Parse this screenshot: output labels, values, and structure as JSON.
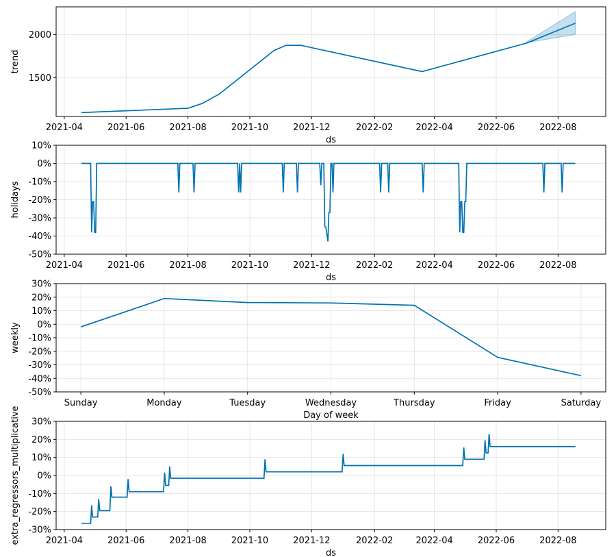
{
  "chart_data": [
    {
      "type": "line",
      "ylabel": "trend",
      "xlabel": "ds",
      "x_axis": "date",
      "xlim": [
        "2021-03-24",
        "2022-09-17"
      ],
      "xticks": [
        "2021-04",
        "2021-06",
        "2021-08",
        "2021-10",
        "2021-12",
        "2022-02",
        "2022-04",
        "2022-06",
        "2022-08"
      ],
      "ylim": [
        1050,
        2320
      ],
      "yticks": [
        1500,
        2000
      ],
      "ytick_format": "number",
      "grid": true,
      "line_color": "#0072B2",
      "band_color": "#0072B2",
      "series": [
        {
          "x": [
            "2021-04-18",
            "2021-08-01",
            "2021-08-15",
            "2021-09-01",
            "2021-10-25",
            "2021-11-06",
            "2021-11-20",
            "2022-03-20",
            "2022-07-01",
            "2022-08-18"
          ],
          "values": [
            1095,
            1145,
            1200,
            1310,
            1815,
            1875,
            1875,
            1570,
            1900,
            2130
          ]
        }
      ],
      "uncertainty": {
        "x": [
          "2022-07-01",
          "2022-08-18"
        ],
        "lower": [
          1905,
          2000
        ],
        "upper": [
          1915,
          2265
        ]
      }
    },
    {
      "type": "line",
      "ylabel": "holidays",
      "xlabel": "ds",
      "x_axis": "date",
      "xlim": [
        "2021-03-24",
        "2022-09-17"
      ],
      "xticks": [
        "2021-04",
        "2021-06",
        "2021-08",
        "2021-10",
        "2021-12",
        "2022-02",
        "2022-04",
        "2022-06",
        "2022-08"
      ],
      "ylim": [
        -50,
        10
      ],
      "yticks": [
        -50,
        -40,
        -30,
        -20,
        -10,
        0,
        10
      ],
      "ytick_format": "percent",
      "grid": true,
      "line_color": "#0072B2",
      "series": [
        {
          "x": [
            "2021-04-18",
            "2021-04-27",
            "2021-04-28",
            "2021-04-29",
            "2021-04-30",
            "2021-05-01",
            "2021-05-02",
            "2021-05-03",
            "2021-05-04",
            "2021-05-05",
            "2021-05-06",
            "2021-07-22",
            "2021-07-23",
            "2021-07-24",
            "2021-08-06",
            "2021-08-07",
            "2021-08-08",
            "2021-09-19",
            "2021-09-20",
            "2021-09-21",
            "2021-09-22",
            "2021-09-23",
            "2021-09-24",
            "2021-09-25",
            "2021-11-02",
            "2021-11-03",
            "2021-11-04",
            "2021-11-16",
            "2021-11-17",
            "2021-11-18",
            "2021-12-09",
            "2021-12-10",
            "2021-12-11",
            "2021-12-13",
            "2021-12-14",
            "2021-12-15",
            "2021-12-17",
            "2021-12-18",
            "2021-12-19",
            "2021-12-20",
            "2021-12-21",
            "2021-12-22",
            "2021-12-23",
            "2021-12-24",
            "2022-02-06",
            "2022-02-07",
            "2022-02-08",
            "2022-02-14",
            "2022-02-15",
            "2022-02-16",
            "2022-03-20",
            "2022-03-21",
            "2022-03-22",
            "2022-04-25",
            "2022-04-26",
            "2022-04-27",
            "2022-04-28",
            "2022-04-29",
            "2022-04-30",
            "2022-05-01",
            "2022-05-02",
            "2022-05-03",
            "2022-05-04",
            "2022-05-05",
            "2022-07-17",
            "2022-07-18",
            "2022-07-19",
            "2022-08-04",
            "2022-08-05",
            "2022-08-06",
            "2022-08-07",
            "2022-08-18"
          ],
          "values": [
            0,
            0,
            -38,
            -21,
            -21,
            -38,
            -38,
            0,
            0,
            0,
            0,
            0,
            -16,
            0,
            0,
            -16,
            0,
            0,
            -16,
            0,
            -16,
            0,
            0,
            0,
            0,
            -16,
            0,
            0,
            -16,
            0,
            0,
            -12,
            0,
            0,
            -35,
            -35,
            -43,
            -27,
            -27,
            0,
            0,
            -16,
            0,
            0,
            0,
            -16,
            0,
            0,
            -16,
            0,
            0,
            -16,
            0,
            0,
            -38,
            -21,
            -21,
            -38,
            -38,
            -21,
            -21,
            0,
            0,
            0,
            0,
            -16,
            0,
            0,
            -16,
            0,
            0,
            0
          ]
        }
      ]
    },
    {
      "type": "line",
      "ylabel": "weekly",
      "xlabel": "Day of week",
      "x_axis": "category",
      "categories": [
        "Sunday",
        "Monday",
        "Tuesday",
        "Wednesday",
        "Thursday",
        "Friday",
        "Saturday"
      ],
      "ylim": [
        -50,
        30
      ],
      "yticks": [
        -50,
        -40,
        -30,
        -20,
        -10,
        0,
        10,
        20,
        30
      ],
      "ytick_format": "percent",
      "grid": true,
      "line_color": "#0072B2",
      "series": [
        {
          "values": [
            -2,
            19,
            16,
            15.7,
            14,
            -24.5,
            -38
          ]
        }
      ]
    },
    {
      "type": "line",
      "ylabel": "extra_regressors_multiplicative",
      "xlabel": "ds",
      "x_axis": "date",
      "xlim": [
        "2021-03-24",
        "2022-09-17"
      ],
      "xticks": [
        "2021-04",
        "2021-06",
        "2021-08",
        "2021-10",
        "2021-12",
        "2022-02",
        "2022-04",
        "2022-06",
        "2022-08"
      ],
      "ylim": [
        -30,
        30
      ],
      "yticks": [
        -30,
        -20,
        -10,
        0,
        10,
        20,
        30
      ],
      "ytick_format": "percent",
      "grid": true,
      "line_color": "#0072B2",
      "series": [
        {
          "x": [
            "2021-04-18",
            "2021-04-27",
            "2021-04-28",
            "2021-04-29",
            "2021-05-04",
            "2021-05-05",
            "2021-05-06",
            "2021-05-16",
            "2021-05-17",
            "2021-05-18",
            "2021-06-02",
            "2021-06-03",
            "2021-06-04",
            "2021-07-08",
            "2021-07-09",
            "2021-07-10",
            "2021-07-13",
            "2021-07-14",
            "2021-07-15",
            "2021-10-15",
            "2021-10-16",
            "2021-10-17",
            "2021-12-31",
            "2022-01-01",
            "2022-01-02",
            "2022-04-29",
            "2022-04-30",
            "2022-05-01",
            "2022-05-20",
            "2022-05-21",
            "2022-05-22",
            "2022-05-24",
            "2022-05-25",
            "2022-05-26",
            "2022-08-18"
          ],
          "values": [
            -26.5,
            -26.5,
            -16.5,
            -23,
            -23,
            -13,
            -19.5,
            -19.5,
            -6,
            -12,
            -12,
            -2,
            -9,
            -9,
            1.5,
            -5.5,
            -5.5,
            5,
            -1.5,
            -1.5,
            9,
            2,
            2,
            12,
            5.5,
            5.5,
            15.5,
            9,
            9,
            19.5,
            12.5,
            12.5,
            23,
            16,
            16
          ]
        }
      ]
    }
  ]
}
